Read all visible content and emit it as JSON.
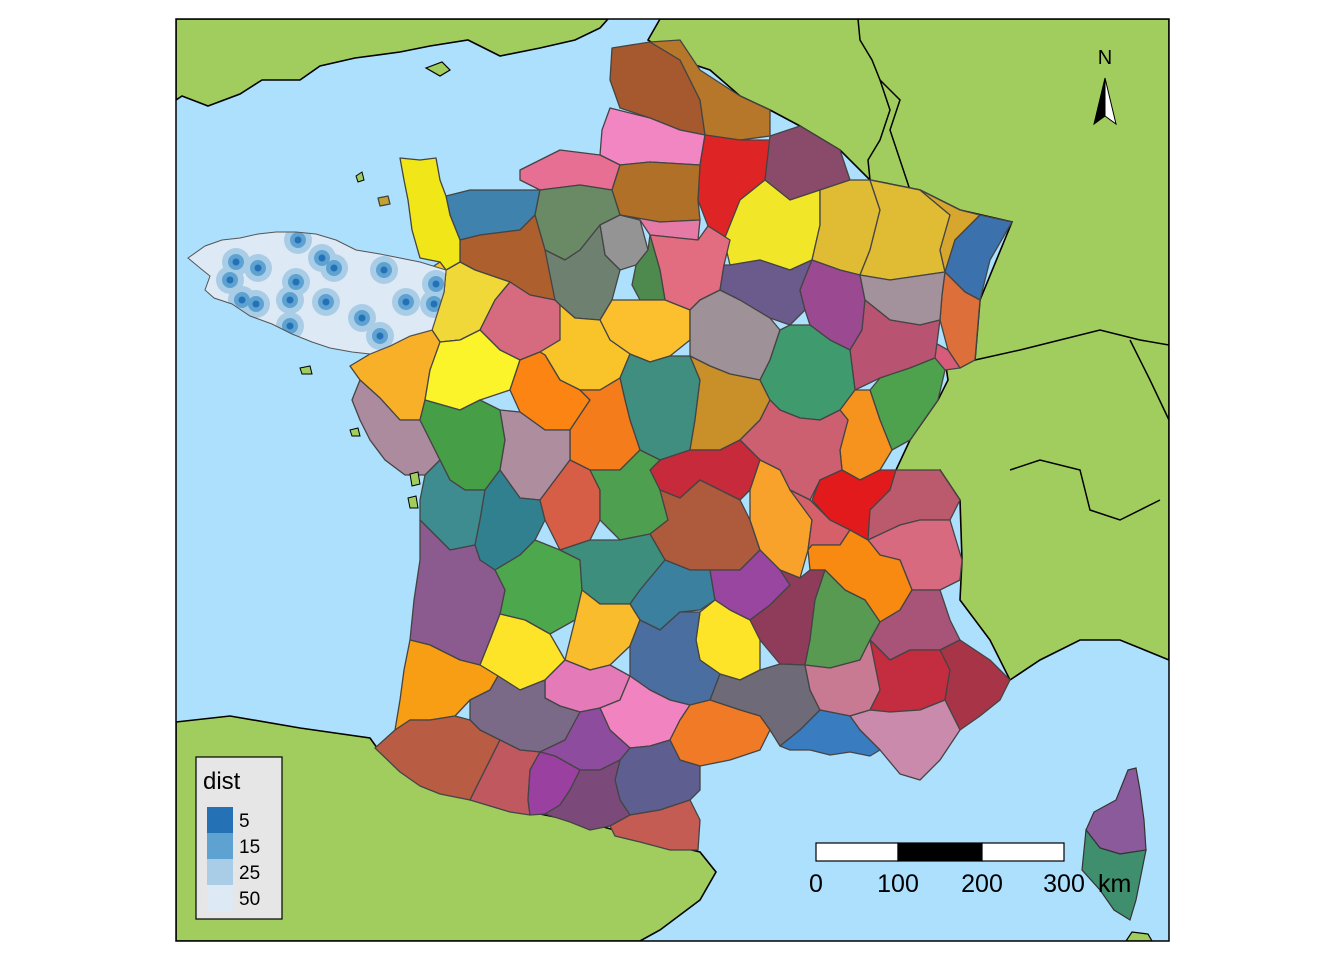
{
  "map": {
    "colors": {
      "sea": "#ade0fc",
      "land": "#a1cd5e",
      "border": "#000000"
    },
    "north_arrow_label": "N",
    "scale_bar": {
      "ticks": [
        "0",
        "100",
        "200",
        "300"
      ],
      "unit": "km"
    },
    "legend": {
      "title": "dist",
      "items": [
        {
          "label": "5",
          "color": "#2571b5"
        },
        {
          "label": "15",
          "color": "#5ea2d2"
        },
        {
          "label": "25",
          "color": "#a9cde6"
        },
        {
          "label": "50",
          "color": "#dde9f4"
        }
      ]
    },
    "brittany_centers": [
      [
        236,
        262
      ],
      [
        230,
        280
      ],
      [
        258,
        268
      ],
      [
        242,
        300
      ],
      [
        256,
        304
      ],
      [
        296,
        282
      ],
      [
        290,
        300
      ],
      [
        322,
        258
      ],
      [
        334,
        268
      ],
      [
        298,
        240
      ],
      [
        326,
        302
      ],
      [
        362,
        318
      ],
      [
        384,
        270
      ],
      [
        406,
        302
      ],
      [
        436,
        284
      ],
      [
        434,
        304
      ],
      [
        380,
        336
      ],
      [
        290,
        326
      ]
    ]
  }
}
